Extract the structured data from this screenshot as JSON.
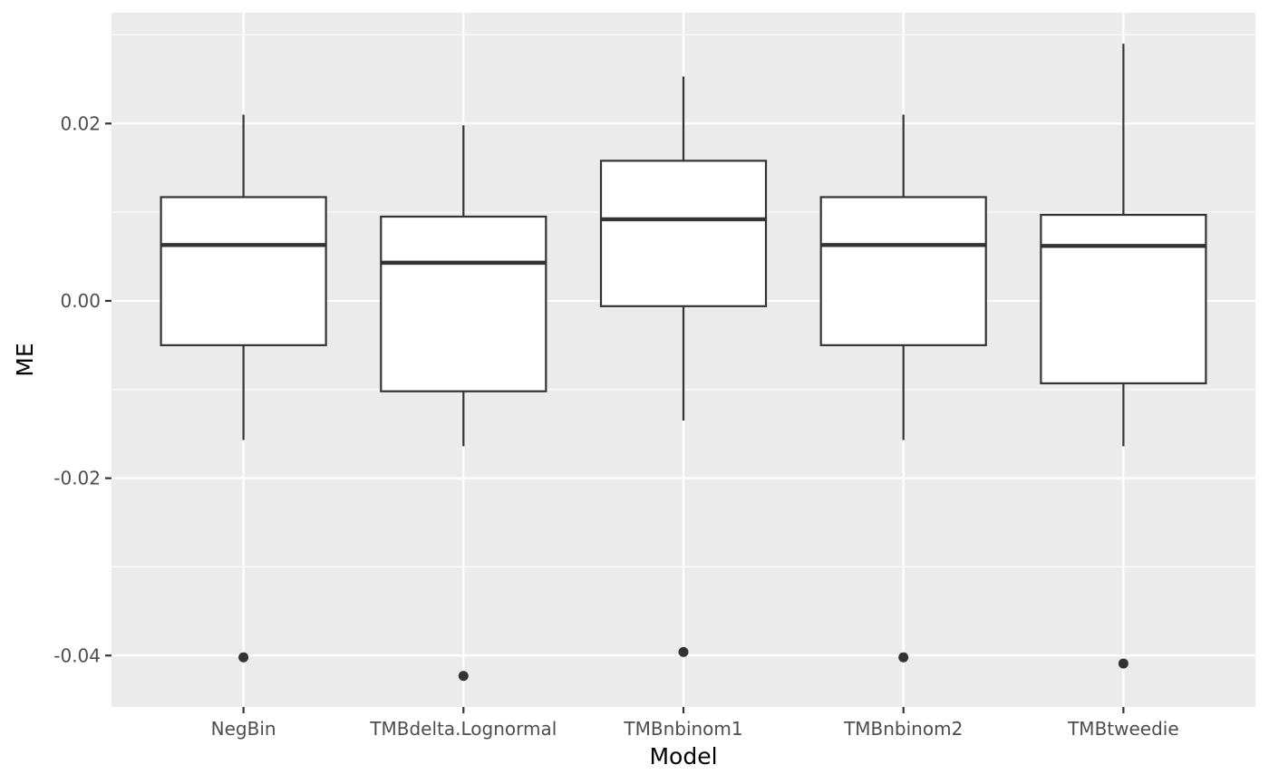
{
  "chart_data": {
    "type": "boxplot",
    "xlabel": "Model",
    "ylabel": "ME",
    "categories": [
      "NegBin",
      "TMBdelta.Lognormal",
      "TMBnbinom1",
      "TMBnbinom2",
      "TMBtweedie"
    ],
    "boxes": [
      {
        "name": "NegBin",
        "whisker_low": -0.0157,
        "q1": -0.005,
        "median": 0.0063,
        "q3": 0.0117,
        "whisker_high": 0.021,
        "outliers": [
          -0.0402
        ]
      },
      {
        "name": "TMBdelta.Lognormal",
        "whisker_low": -0.0164,
        "q1": -0.0102,
        "median": 0.0043,
        "q3": 0.0095,
        "whisker_high": 0.0198,
        "outliers": [
          -0.0423
        ]
      },
      {
        "name": "TMBnbinom1",
        "whisker_low": -0.0135,
        "q1": -0.0006,
        "median": 0.0092,
        "q3": 0.0158,
        "whisker_high": 0.0253,
        "outliers": [
          -0.0396
        ]
      },
      {
        "name": "TMBnbinom2",
        "whisker_low": -0.0157,
        "q1": -0.005,
        "median": 0.0063,
        "q3": 0.0117,
        "whisker_high": 0.021,
        "outliers": [
          -0.0402
        ]
      },
      {
        "name": "TMBtweedie",
        "whisker_low": -0.0164,
        "q1": -0.0093,
        "median": 0.0062,
        "q3": 0.0097,
        "whisker_high": 0.029,
        "outliers": [
          -0.0409
        ]
      }
    ],
    "ylim": [
      -0.0458,
      0.0325
    ],
    "y_ticks": [
      -0.04,
      -0.02,
      0.0,
      0.02
    ],
    "y_tick_labels": [
      "-0.04",
      "-0.02",
      "0.00",
      "0.02"
    ],
    "grid": true,
    "legend": "none",
    "colors": {
      "panel_background": "#ebebeb",
      "grid": "#ffffff",
      "box_fill": "#ffffff",
      "box_stroke": "#333333",
      "tick_text": "#4d4d4d"
    }
  }
}
